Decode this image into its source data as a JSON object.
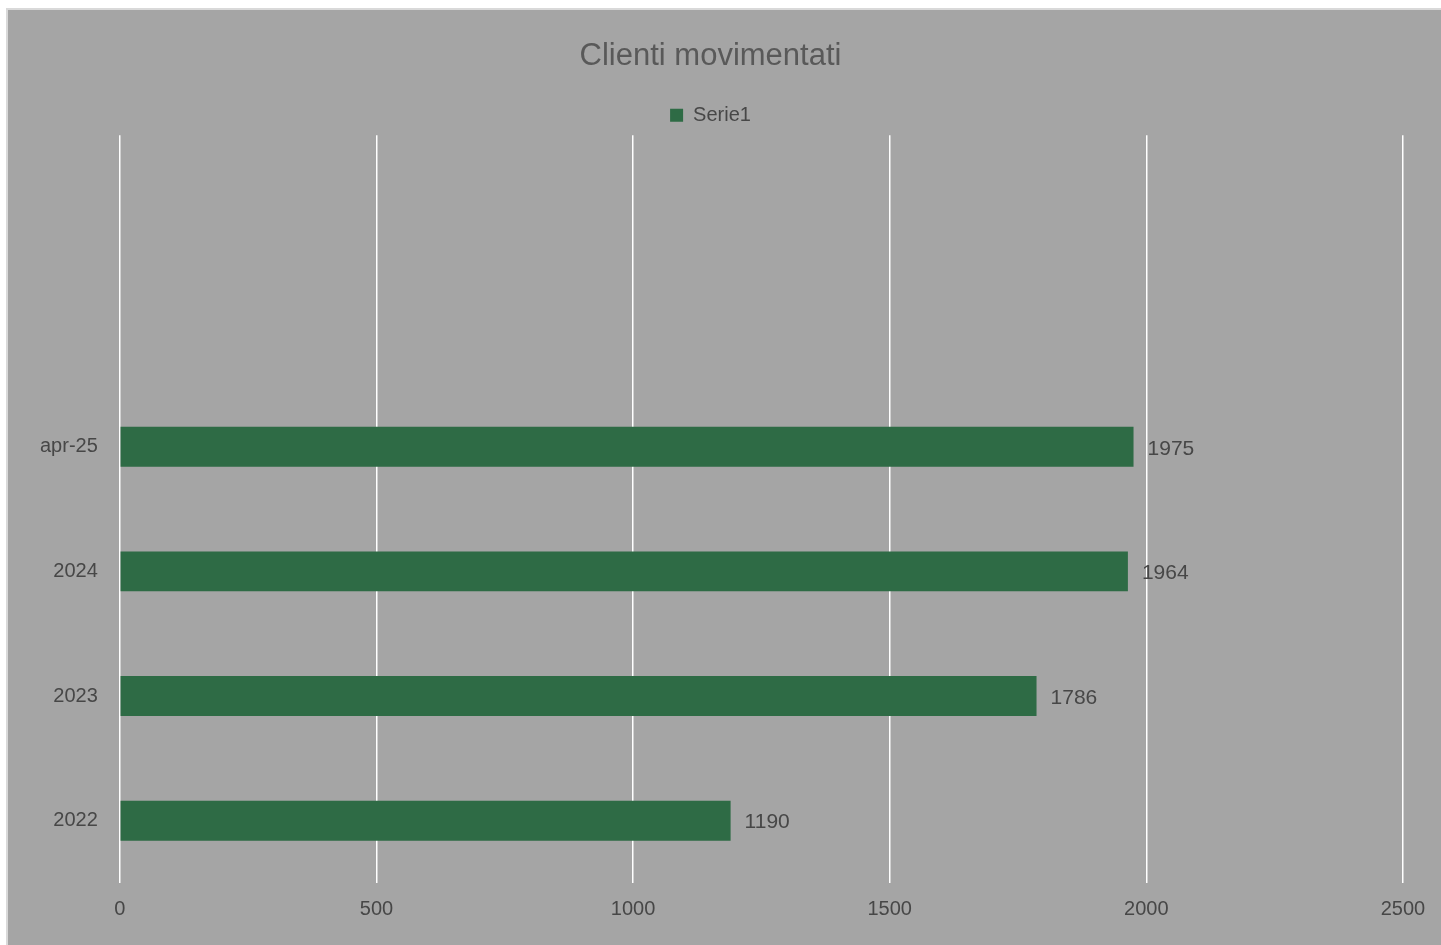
{
  "chart_data": {
    "type": "bar",
    "orientation": "horizontal",
    "title": "Clienti movimentati",
    "categories": [
      null,
      null,
      "apr-25",
      "2024",
      "2023",
      "2022"
    ],
    "series": [
      {
        "name": "Serie1",
        "color": "#2e6b45",
        "values": [
          null,
          null,
          1975,
          1964,
          1786,
          1190
        ]
      }
    ],
    "xlim": [
      0,
      2500
    ],
    "xticks": [
      0,
      500,
      1000,
      1500,
      2000,
      2500
    ],
    "grid": "x",
    "legend": "top",
    "data_labels": true
  }
}
